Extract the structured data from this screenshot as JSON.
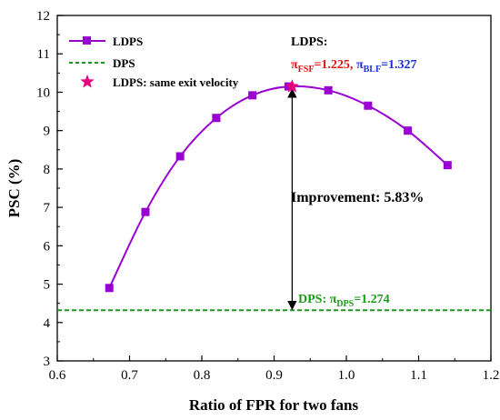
{
  "chart_data": {
    "type": "line",
    "xlabel": "Ratio of FPR for two fans",
    "ylabel": "PSC (%)",
    "xlim": [
      0.6,
      1.2
    ],
    "ylim": [
      3,
      12
    ],
    "x_ticks": [
      "0.6",
      "0.7",
      "0.8",
      "0.9",
      "1.0",
      "1.1",
      "1.2"
    ],
    "y_ticks": [
      "3",
      "4",
      "5",
      "6",
      "7",
      "8",
      "9",
      "10",
      "11",
      "12"
    ],
    "grid": false,
    "legend_position": "top-left",
    "series": [
      {
        "name": "LDPS",
        "color": "#9b00d3",
        "marker": "square",
        "x": [
          0.672,
          0.722,
          0.77,
          0.82,
          0.87,
          0.92,
          0.975,
          1.03,
          1.085,
          1.14
        ],
        "y": [
          4.9,
          6.88,
          8.33,
          9.33,
          9.92,
          10.15,
          10.05,
          9.65,
          9.0,
          8.1
        ]
      },
      {
        "name": "DPS",
        "color": "#1a9a1a",
        "style": "dashed",
        "y": 4.32
      },
      {
        "name": "LDPS: same exit velocity",
        "color": "#e6007e",
        "marker": "star",
        "x": [
          0.925
        ],
        "y": [
          10.15
        ]
      }
    ],
    "annotations": {
      "ldps_title": "LDPS:",
      "pi": "π",
      "fsf_sub": "FSF",
      "fsf_val": "=1.225,",
      "blf_sub": "BLF",
      "blf_val": "=1.327",
      "improvement": "Improvement: 5.83%",
      "dps_prefix": "DPS: ",
      "dps_sub": "DPS",
      "dps_val": "=1.274"
    },
    "arrow": {
      "x": 0.925,
      "y_from": 4.32,
      "y_to": 10.15
    }
  }
}
